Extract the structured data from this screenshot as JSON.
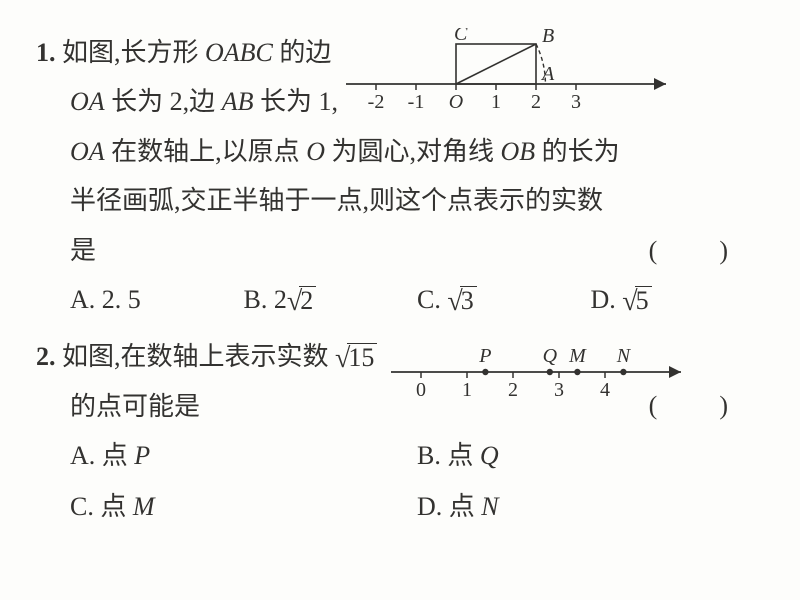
{
  "q1": {
    "num": "1.",
    "line1a": "如图,长方形 ",
    "oabc": "OABC",
    "line1b": " 的边",
    "line2a": "OA",
    "line2b": " 长为 2,边 ",
    "line2c": "AB",
    "line2d": " 长为 1,",
    "line3a": "OA",
    "line3b": " 在数轴上,以原点 ",
    "line3c": "O",
    "line3d": " 为圆心,对角线 ",
    "line3e": "OB",
    "line3f": " 的长为",
    "line4": "半径画弧,交正半轴于一点,则这个点表示的实数",
    "line5": "是",
    "paren": "(　)",
    "choices": {
      "a": "A. 2. 5",
      "b_pre": "B. 2",
      "b_arg": "2",
      "c_pre": "C. ",
      "c_arg": "3",
      "d_pre": "D. ",
      "d_arg": "5"
    },
    "figure": {
      "ticks": [
        "-2",
        "-1",
        "O",
        "1",
        "2",
        "3"
      ],
      "labels": {
        "A": "A",
        "B": "B",
        "C": "C"
      },
      "colors": {
        "stroke": "#333230",
        "fill": "none"
      },
      "unit": 40,
      "rect_w": 2,
      "rect_h": 1
    }
  },
  "q2": {
    "num": "2.",
    "line1a": "如图,在数轴上表示实数 ",
    "sqrt_arg": "15",
    "line2": "的点可能是",
    "paren": "(　)",
    "choices": {
      "a_pre": "A. 点 ",
      "a_it": "P",
      "b_pre": "B. 点 ",
      "b_it": "Q",
      "c_pre": "C. 点 ",
      "c_it": "M",
      "d_pre": "D. 点 ",
      "d_it": "N"
    },
    "figure": {
      "ticks": [
        "0",
        "1",
        "2",
        "3",
        "4"
      ],
      "points": [
        {
          "label": "P",
          "x": 1.4
        },
        {
          "label": "Q",
          "x": 2.8
        },
        {
          "label": "M",
          "x": 3.4
        },
        {
          "label": "N",
          "x": 4.4
        }
      ],
      "colors": {
        "stroke": "#333230"
      },
      "unit": 46
    }
  }
}
